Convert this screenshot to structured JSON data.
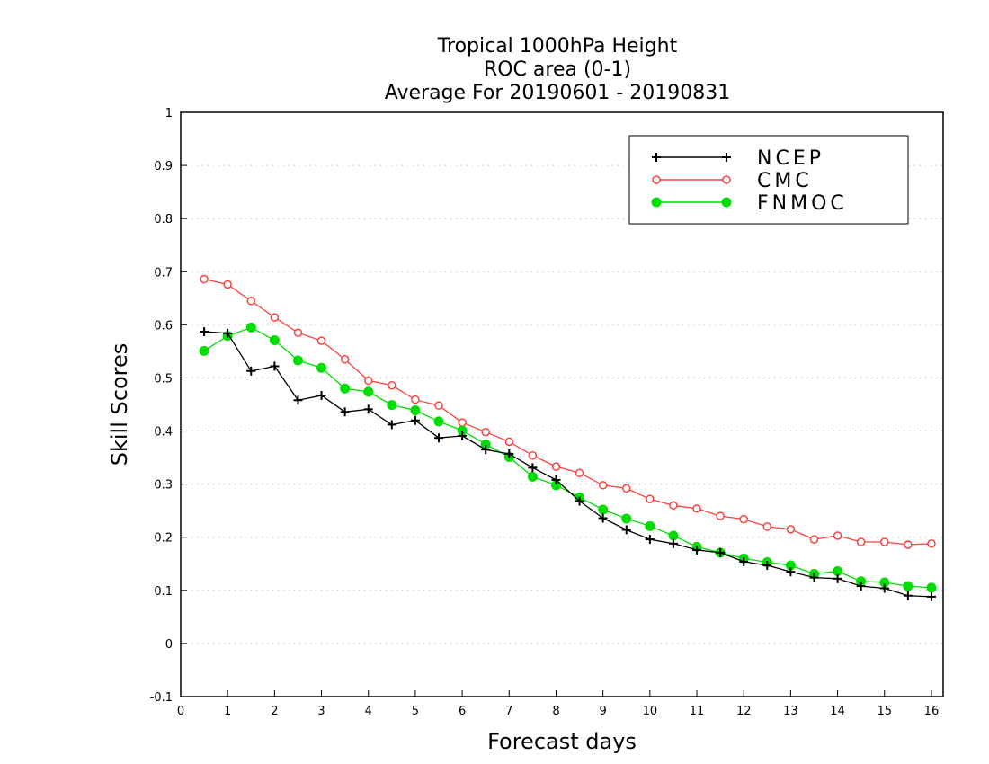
{
  "chart_data": {
    "type": "line",
    "title_lines": [
      "Tropical 1000hPa Height",
      "ROC area (0-1)",
      "Average For 20190601 - 20190831"
    ],
    "xlabel": "Forecast days",
    "ylabel": "Skill Scores",
    "xlim": [
      0,
      16.25
    ],
    "ylim": [
      -0.1,
      1
    ],
    "xticks": [
      0,
      1,
      2,
      3,
      4,
      5,
      6,
      7,
      8,
      9,
      10,
      11,
      12,
      13,
      14,
      15,
      16
    ],
    "xtick_labels": [
      "0",
      "1",
      "2",
      "3",
      "4",
      "5",
      "6",
      "7",
      "8",
      "9",
      "10",
      "11",
      "12",
      "13",
      "14",
      "15",
      "16"
    ],
    "yticks": [
      -0.1,
      0,
      0.1,
      0.2,
      0.3,
      0.4,
      0.5,
      0.6,
      0.7,
      0.8,
      0.9,
      1
    ],
    "ytick_labels": [
      "-0.1",
      "0",
      "0.1",
      "0.2",
      "0.3",
      "0.4",
      "0.5",
      "0.6",
      "0.7",
      "0.8",
      "0.9",
      "1"
    ],
    "grid": "horizontal dotted",
    "legend_position": "top-right",
    "x": [
      0.5,
      1,
      1.5,
      2,
      2.5,
      3,
      3.5,
      4,
      4.5,
      5,
      5.5,
      6,
      6.5,
      7,
      7.5,
      8,
      8.5,
      9,
      9.5,
      10,
      10.5,
      11,
      11.5,
      12,
      12.5,
      13,
      13.5,
      14,
      14.5,
      15,
      15.5,
      16
    ],
    "series": [
      {
        "name": "NCEP",
        "color": "#000000",
        "marker": "plus",
        "values": [
          0.587,
          0.584,
          0.513,
          0.522,
          0.458,
          0.467,
          0.436,
          0.441,
          0.412,
          0.42,
          0.387,
          0.391,
          0.365,
          0.357,
          0.331,
          0.308,
          0.268,
          0.236,
          0.214,
          0.196,
          0.188,
          0.176,
          0.171,
          0.154,
          0.147,
          0.135,
          0.124,
          0.122,
          0.108,
          0.104,
          0.09,
          0.088
        ]
      },
      {
        "name": "CMC",
        "color": "#ff4040",
        "marker": "open-circle",
        "values": [
          0.686,
          0.676,
          0.645,
          0.614,
          0.585,
          0.57,
          0.535,
          0.495,
          0.486,
          0.459,
          0.448,
          0.416,
          0.398,
          0.38,
          0.354,
          0.333,
          0.321,
          0.298,
          0.292,
          0.272,
          0.26,
          0.254,
          0.24,
          0.234,
          0.22,
          0.215,
          0.196,
          0.203,
          0.191,
          0.191,
          0.186,
          0.188
        ]
      },
      {
        "name": "FNMOC",
        "color": "#00dd00",
        "marker": "filled-circle",
        "values": [
          0.551,
          0.579,
          0.595,
          0.571,
          0.533,
          0.519,
          0.48,
          0.474,
          0.449,
          0.439,
          0.418,
          0.401,
          0.375,
          0.351,
          0.314,
          0.298,
          0.275,
          0.252,
          0.235,
          0.221,
          0.203,
          0.182,
          0.171,
          0.16,
          0.153,
          0.147,
          0.131,
          0.136,
          0.117,
          0.115,
          0.108,
          0.105
        ]
      }
    ]
  }
}
